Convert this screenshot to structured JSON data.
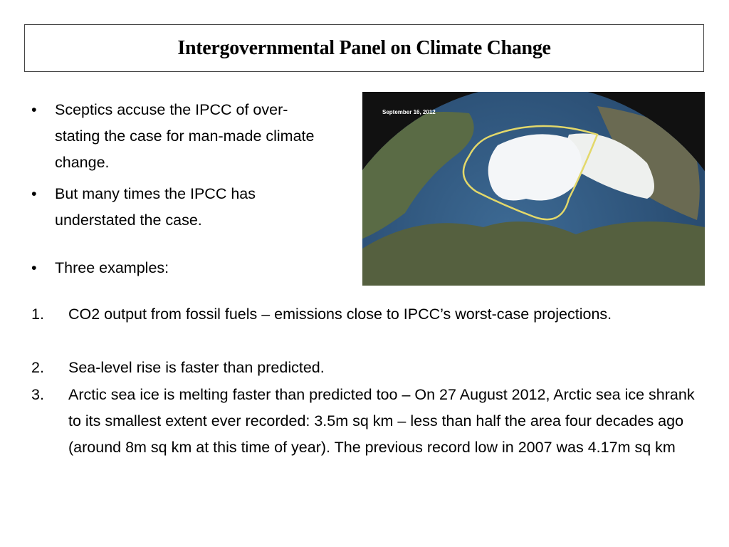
{
  "header": {
    "title": "Intergovernmental Panel on Climate Change"
  },
  "image": {
    "caption": "September 16, 2012"
  },
  "bullets": [
    "Sceptics accuse the IPCC of over-stating the case for man-made climate change.",
    "But many times the IPCC has understated the case.",
    "Three examples:"
  ],
  "numbered": [
    {
      "number": "1.",
      "text": "CO2 output from fossil fuels – emissions close to IPCC’s worst-case projections."
    },
    {
      "number": "2.",
      "text": "Sea-level rise is faster than predicted."
    },
    {
      "number": "3.",
      "text": "Arctic sea ice is melting faster than predicted too – On 27 August 2012, Arctic sea ice shrank to its smallest extent ever recorded: 3.5m sq km – less than half the area four decades ago (around 8m sq km at this time of year). The previous record low in 2007 was 4.17m sq km"
    }
  ]
}
